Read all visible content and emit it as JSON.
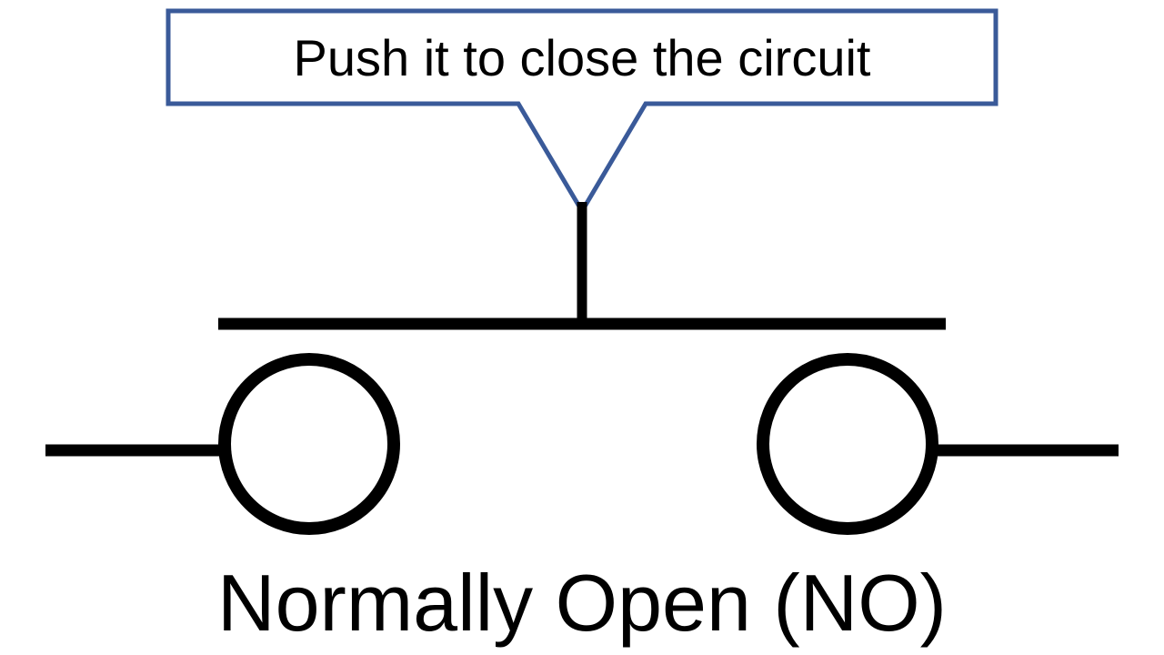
{
  "callout": {
    "text": "Push it to close the circuit",
    "border_color": "#3a5a99"
  },
  "caption": "Normally Open (NO)",
  "symbol": {
    "stroke_color": "#000000",
    "type": "push-button-switch-normally-open"
  }
}
